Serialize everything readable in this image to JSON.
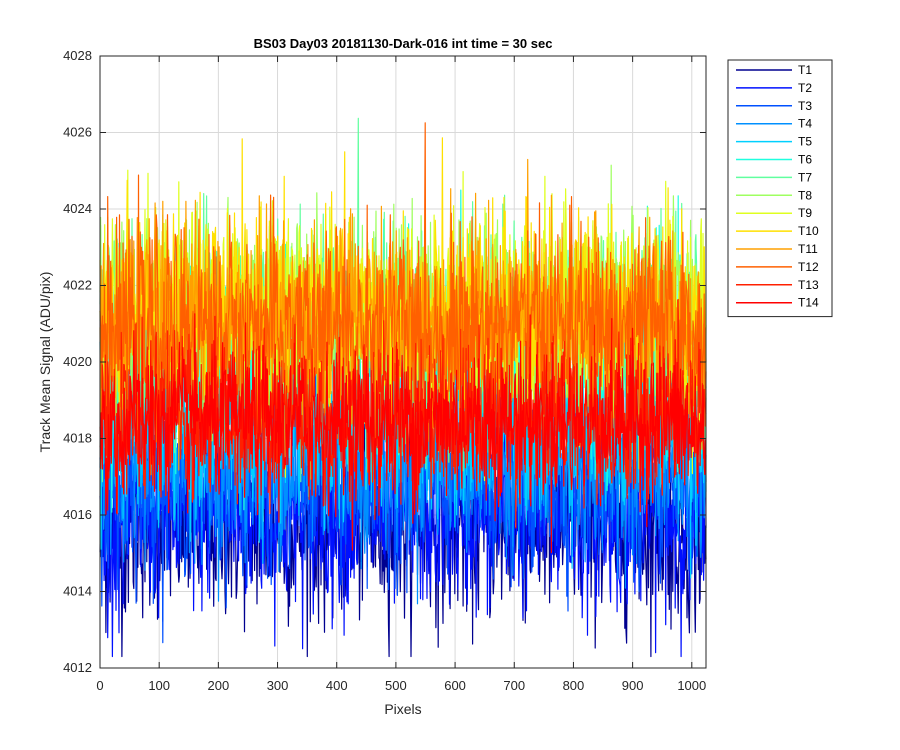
{
  "chart_data": {
    "type": "line",
    "title": "BS03 Day03 20181130-Dark-016 int time = 30 sec",
    "xlabel": "Pixels",
    "ylabel": "Track Mean Signal (ADU/pix)",
    "xlim": [
      0,
      1024
    ],
    "ylim": [
      4012,
      4028
    ],
    "xticks": [
      0,
      100,
      200,
      300,
      400,
      500,
      600,
      700,
      800,
      900,
      1000
    ],
    "yticks": [
      4012,
      4014,
      4016,
      4018,
      4020,
      4022,
      4024,
      4026,
      4028
    ],
    "grid": true,
    "legend_position": "outside-top-right",
    "n_points": 1024,
    "series": [
      {
        "name": "T1",
        "color": "#00008f",
        "mean": 4015.7,
        "noise": 1.2
      },
      {
        "name": "T2",
        "color": "#0010ff",
        "mean": 4016.0,
        "noise": 1.2
      },
      {
        "name": "T3",
        "color": "#0050ff",
        "mean": 4016.8,
        "noise": 1.1
      },
      {
        "name": "T4",
        "color": "#0090ff",
        "mean": 4017.4,
        "noise": 1.1
      },
      {
        "name": "T5",
        "color": "#00d0ff",
        "mean": 4018.6,
        "noise": 1.3
      },
      {
        "name": "T6",
        "color": "#20ffdf",
        "mean": 4020.2,
        "noise": 1.3
      },
      {
        "name": "T7",
        "color": "#60ff9f",
        "mean": 4020.8,
        "noise": 1.3
      },
      {
        "name": "T8",
        "color": "#9fff60",
        "mean": 4021.2,
        "noise": 1.3
      },
      {
        "name": "T9",
        "color": "#dfff20",
        "mean": 4021.3,
        "noise": 1.3
      },
      {
        "name": "T10",
        "color": "#ffe000",
        "mean": 4021.2,
        "noise": 1.3
      },
      {
        "name": "T11",
        "color": "#ffa000",
        "mean": 4021.0,
        "noise": 1.3
      },
      {
        "name": "T12",
        "color": "#ff6000",
        "mean": 4020.9,
        "noise": 1.25
      },
      {
        "name": "T13",
        "color": "#ff2000",
        "mean": 4018.6,
        "noise": 1.0
      },
      {
        "name": "T14",
        "color": "#ff0000",
        "mean": 4018.4,
        "noise": 1.0
      }
    ]
  }
}
